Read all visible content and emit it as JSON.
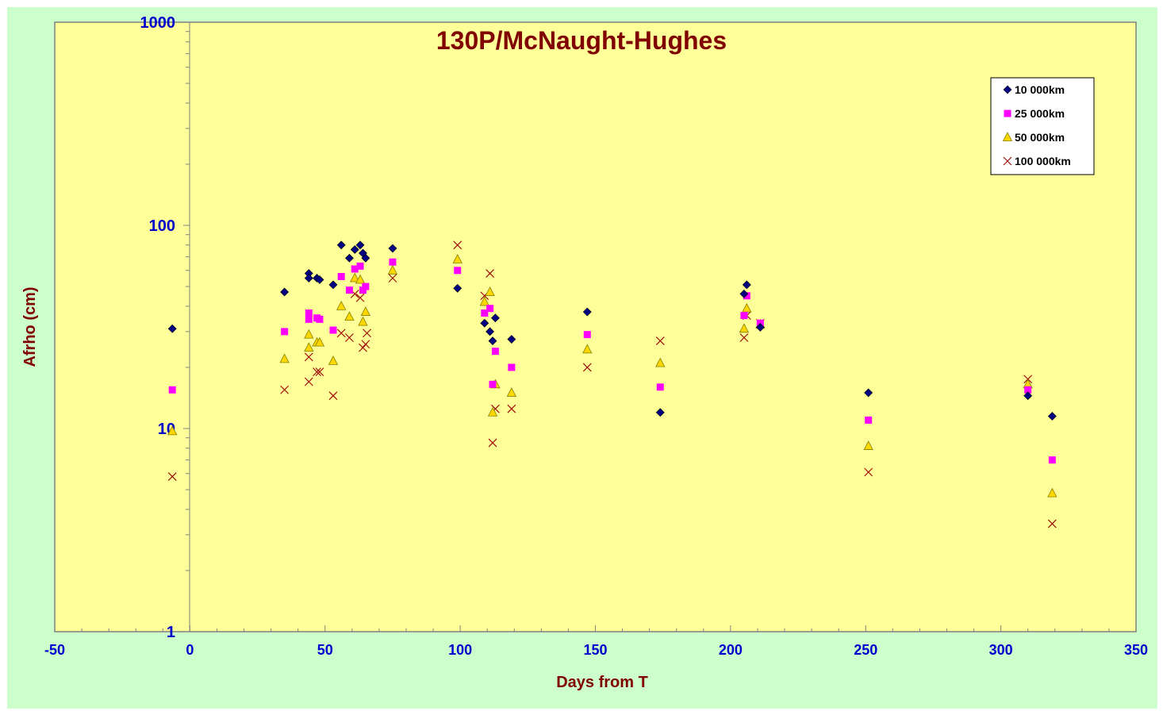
{
  "chart_data": {
    "type": "scatter",
    "title": "130P/McNaught-Hughes",
    "xlabel": "Days from T",
    "ylabel": "Afrho (cm)",
    "xlim": [
      -50,
      350
    ],
    "ylim": [
      1,
      1000
    ],
    "y_scale": "log",
    "x_ticks": [
      "-50",
      "0",
      "50",
      "100",
      "150",
      "200",
      "250",
      "300",
      "350"
    ],
    "y_ticks": [
      "1",
      "10",
      "100",
      "1000"
    ],
    "grid": false,
    "legend_position": "top-right",
    "colors": {
      "frame_bg": "#ccffcc",
      "plot_bg": "#ffff99",
      "title": "#800000",
      "axis_label": "#800000",
      "tick_label": "#0000cc"
    },
    "series": [
      {
        "name": "10 000km",
        "marker": "diamond",
        "color": "#000080",
        "points": [
          [
            -6.5,
            31
          ],
          [
            35,
            47
          ],
          [
            44,
            58
          ],
          [
            44,
            55
          ],
          [
            47,
            55
          ],
          [
            48,
            54
          ],
          [
            53,
            51
          ],
          [
            56,
            80
          ],
          [
            59,
            69
          ],
          [
            61,
            76
          ],
          [
            63,
            80
          ],
          [
            64,
            73
          ],
          [
            65,
            69
          ],
          [
            75,
            77
          ],
          [
            99,
            49
          ],
          [
            109,
            33
          ],
          [
            111,
            30
          ],
          [
            112,
            27
          ],
          [
            113,
            35
          ],
          [
            119,
            27.5
          ],
          [
            147,
            37.5
          ],
          [
            174,
            12
          ],
          [
            205,
            46
          ],
          [
            206,
            51
          ],
          [
            211,
            31.5
          ],
          [
            251,
            15
          ],
          [
            310,
            14.5
          ],
          [
            319,
            11.5
          ]
        ]
      },
      {
        "name": "25 000km",
        "marker": "square",
        "color": "#ff00ff",
        "points": [
          [
            -6.5,
            15.5
          ],
          [
            35,
            30
          ],
          [
            44,
            37
          ],
          [
            44,
            34.5
          ],
          [
            47,
            35
          ],
          [
            48,
            34.5
          ],
          [
            53,
            30.5
          ],
          [
            56,
            56
          ],
          [
            59,
            48
          ],
          [
            61,
            61
          ],
          [
            63,
            63
          ],
          [
            64,
            48
          ],
          [
            65,
            50
          ],
          [
            75,
            66
          ],
          [
            99,
            60
          ],
          [
            109,
            37
          ],
          [
            111,
            39
          ],
          [
            112,
            16.5
          ],
          [
            113,
            24
          ],
          [
            119,
            20
          ],
          [
            147,
            29
          ],
          [
            174,
            16
          ],
          [
            205,
            36
          ],
          [
            206,
            45
          ],
          [
            211,
            33
          ],
          [
            251,
            11
          ],
          [
            310,
            15.5
          ],
          [
            319,
            7
          ]
        ]
      },
      {
        "name": "50 000km",
        "marker": "triangle",
        "color": "#ffd700",
        "points": [
          [
            -6.5,
            9.7
          ],
          [
            35,
            22
          ],
          [
            44,
            29
          ],
          [
            44,
            25
          ],
          [
            47,
            26.5
          ],
          [
            48,
            26.5
          ],
          [
            53,
            21.5
          ],
          [
            56,
            40
          ],
          [
            59,
            35.5
          ],
          [
            61,
            55
          ],
          [
            63,
            54
          ],
          [
            64,
            33.5
          ],
          [
            65,
            37.5
          ],
          [
            75,
            60
          ],
          [
            99,
            68
          ],
          [
            109,
            42
          ],
          [
            111,
            47
          ],
          [
            112,
            12
          ],
          [
            113,
            16.5
          ],
          [
            119,
            15
          ],
          [
            147,
            24.5
          ],
          [
            174,
            21
          ],
          [
            205,
            31
          ],
          [
            206,
            39
          ],
          [
            211,
            32.5
          ],
          [
            251,
            8.2
          ],
          [
            310,
            16.5
          ],
          [
            319,
            4.8
          ]
        ]
      },
      {
        "name": "100 000km",
        "marker": "x",
        "color": "#990000",
        "points": [
          [
            -6.5,
            5.8
          ],
          [
            35,
            15.5
          ],
          [
            44,
            22.5
          ],
          [
            44,
            17
          ],
          [
            47,
            19
          ],
          [
            48,
            19
          ],
          [
            53,
            14.5
          ],
          [
            56,
            29.5
          ],
          [
            59,
            28
          ],
          [
            61,
            46
          ],
          [
            63,
            44
          ],
          [
            64,
            25
          ],
          [
            65,
            26
          ],
          [
            65.5,
            29.5
          ],
          [
            75,
            55
          ],
          [
            99,
            80
          ],
          [
            109,
            45
          ],
          [
            111,
            58
          ],
          [
            112,
            8.5
          ],
          [
            113,
            12.5
          ],
          [
            119,
            12.5
          ],
          [
            147,
            20
          ],
          [
            174,
            27
          ],
          [
            205,
            28
          ],
          [
            206,
            36
          ],
          [
            211,
            33
          ],
          [
            251,
            6.1
          ],
          [
            310,
            17.5
          ],
          [
            319,
            3.4
          ]
        ]
      }
    ]
  }
}
